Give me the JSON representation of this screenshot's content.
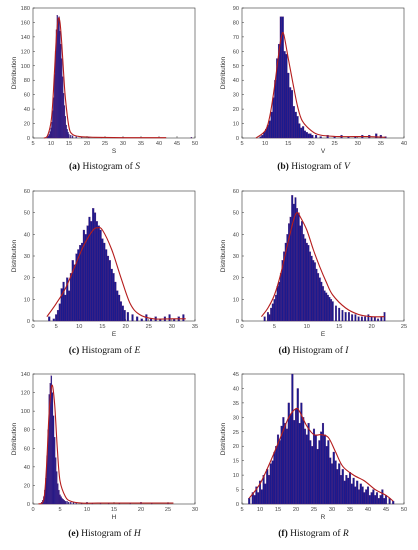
{
  "colors": {
    "bar": "#1b1a8e",
    "bar_edge": "#5a1b6a",
    "curve": "#b51d1d",
    "axis": "#333333"
  },
  "chart_data": [
    {
      "id": "a",
      "type": "bar",
      "caption": {
        "letter": "(a)",
        "text": "Histogram of",
        "variable": "S"
      },
      "xlabel": "S",
      "ylabel": "Distribution",
      "xlim": [
        5,
        50
      ],
      "ylim": [
        0,
        180
      ],
      "xticks": [
        5,
        10,
        15,
        20,
        25,
        30,
        35,
        40,
        45,
        50
      ],
      "yticks": [
        0,
        20,
        40,
        60,
        80,
        100,
        120,
        140,
        160,
        180
      ],
      "bar_width": 0.25,
      "x": [
        9.0,
        9.25,
        9.5,
        9.75,
        10.0,
        10.25,
        10.5,
        10.75,
        11.0,
        11.25,
        11.5,
        11.75,
        12.0,
        12.25,
        12.5,
        12.75,
        13.0,
        13.25,
        13.5,
        13.75,
        14.0,
        14.25,
        14.5,
        14.75,
        15.0,
        15.5,
        16.0,
        17.0,
        18.5,
        20.5,
        24.0,
        30.0,
        49.0
      ],
      "values": [
        2,
        3,
        5,
        9,
        14,
        22,
        38,
        56,
        88,
        120,
        150,
        170,
        165,
        168,
        148,
        130,
        110,
        85,
        62,
        45,
        30,
        18,
        12,
        8,
        5,
        4,
        3,
        2,
        1,
        1,
        1,
        1,
        1
      ],
      "curve": {
        "x": [
          8,
          9,
          10,
          10.5,
          11,
          11.5,
          12,
          12.5,
          13,
          13.5,
          14,
          15,
          16,
          18,
          22,
          30,
          42
        ],
        "y": [
          0,
          3,
          22,
          50,
          95,
          140,
          165,
          160,
          130,
          90,
          55,
          15,
          5,
          2,
          1,
          0.5,
          0.5
        ]
      }
    },
    {
      "id": "b",
      "type": "bar",
      "caption": {
        "letter": "(b)",
        "text": "Histogram of",
        "variable": "V"
      },
      "xlabel": "V",
      "ylabel": "Distribution",
      "xlim": [
        5,
        40
      ],
      "ylim": [
        0,
        90
      ],
      "xticks": [
        5,
        10,
        15,
        20,
        25,
        30,
        35,
        40
      ],
      "yticks": [
        0,
        10,
        20,
        30,
        40,
        50,
        60,
        70,
        80,
        90
      ],
      "bar_width": 0.4,
      "x": [
        9.0,
        9.4,
        9.8,
        10.2,
        10.6,
        11.0,
        11.4,
        11.8,
        12.2,
        12.6,
        13.0,
        13.4,
        13.8,
        14.2,
        14.6,
        15.0,
        15.4,
        15.8,
        16.2,
        16.6,
        17.0,
        17.4,
        17.8,
        18.2,
        18.6,
        19.0,
        19.4,
        19.8,
        20.2,
        21.0,
        22.0,
        23.5,
        25.0,
        26.5,
        28.0,
        29.5,
        31.0,
        32.5,
        34.0,
        35.0,
        36.0
      ],
      "values": [
        1,
        2,
        4,
        6,
        9,
        12,
        18,
        28,
        40,
        55,
        65,
        84,
        84,
        60,
        58,
        45,
        35,
        33,
        22,
        18,
        15,
        10,
        7,
        8,
        5,
        4,
        3,
        3,
        2,
        2,
        1,
        2,
        1,
        2,
        1,
        1,
        2,
        2,
        3,
        2,
        1
      ],
      "curve": {
        "x": [
          8,
          10,
          11,
          12,
          13,
          13.5,
          14,
          15,
          16,
          17,
          18,
          20,
          22,
          26,
          32,
          36
        ],
        "y": [
          0,
          5,
          15,
          35,
          60,
          70,
          72,
          55,
          38,
          22,
          12,
          5,
          2,
          1,
          1,
          0.5
        ]
      }
    },
    {
      "id": "c",
      "type": "bar",
      "caption": {
        "letter": "(c)",
        "text": "Histogram of",
        "variable": "E"
      },
      "xlabel": "E",
      "ylabel": "Distribution",
      "xlim": [
        0,
        35
      ],
      "ylim": [
        0,
        60
      ],
      "xticks": [
        0,
        5,
        10,
        15,
        20,
        25,
        30,
        35
      ],
      "yticks": [
        0,
        10,
        20,
        30,
        40,
        50,
        60
      ],
      "bar_width": 0.4,
      "x": [
        3.5,
        4.5,
        5.0,
        5.4,
        5.8,
        6.2,
        6.6,
        7.0,
        7.4,
        7.8,
        8.2,
        8.6,
        9.0,
        9.4,
        9.8,
        10.2,
        10.6,
        11.0,
        11.4,
        11.8,
        12.2,
        12.6,
        13.0,
        13.4,
        13.8,
        14.2,
        14.6,
        15.0,
        15.4,
        15.8,
        16.2,
        16.6,
        17.0,
        17.4,
        17.8,
        18.2,
        18.6,
        19.0,
        19.4,
        19.8,
        20.5,
        21.5,
        22.5,
        23.5,
        24.5,
        25.5,
        26.5,
        27.5,
        28.5,
        29.5,
        30.5,
        31.5,
        32.5
      ],
      "values": [
        2,
        1,
        3,
        5,
        8,
        15,
        18,
        12,
        20,
        14,
        22,
        28,
        26,
        31,
        33,
        35,
        36,
        42,
        40,
        44,
        48,
        46,
        52,
        50,
        46,
        44,
        42,
        38,
        36,
        33,
        30,
        28,
        24,
        22,
        18,
        14,
        12,
        9,
        7,
        5,
        4,
        3,
        2,
        1,
        3,
        1,
        2,
        1,
        2,
        3,
        1,
        2,
        3
      ],
      "curve": {
        "x": [
          3,
          5,
          7,
          9,
          11,
          13,
          14,
          15,
          17,
          19,
          21,
          23,
          26,
          30,
          33
        ],
        "y": [
          2,
          8,
          15,
          25,
          35,
          42,
          43,
          42,
          33,
          20,
          8,
          3,
          1,
          1,
          1
        ]
      }
    },
    {
      "id": "d",
      "type": "bar",
      "caption": {
        "letter": "(d)",
        "text": "Histogram of",
        "variable": "I"
      },
      "xlabel": "E",
      "ylabel": "Distribution",
      "xlim": [
        0,
        25
      ],
      "ylim": [
        0,
        60
      ],
      "xticks": [
        0,
        5,
        10,
        15,
        20,
        25
      ],
      "yticks": [
        0,
        10,
        20,
        30,
        40,
        50,
        60
      ],
      "bar_width": 0.25,
      "x": [
        3.5,
        4.0,
        4.25,
        4.5,
        4.75,
        5.0,
        5.25,
        5.5,
        5.75,
        6.0,
        6.25,
        6.5,
        6.75,
        7.0,
        7.25,
        7.5,
        7.75,
        8.0,
        8.25,
        8.5,
        8.75,
        9.0,
        9.25,
        9.5,
        9.75,
        10.0,
        10.25,
        10.5,
        10.75,
        11.0,
        11.25,
        11.5,
        11.75,
        12.0,
        12.25,
        12.5,
        12.75,
        13.0,
        13.25,
        13.5,
        13.75,
        14.0,
        14.5,
        15.0,
        15.5,
        16.0,
        16.5,
        17.0,
        17.5,
        18.0,
        18.5,
        19.0,
        19.5,
        20.0,
        20.5,
        21.0,
        21.5,
        22.0
      ],
      "values": [
        2,
        4,
        3,
        6,
        8,
        10,
        12,
        16,
        18,
        22,
        28,
        32,
        36,
        40,
        45,
        48,
        58,
        54,
        57,
        52,
        50,
        44,
        46,
        40,
        38,
        36,
        35,
        32,
        30,
        28,
        27,
        24,
        22,
        20,
        18,
        16,
        14,
        13,
        12,
        11,
        10,
        9,
        7,
        6,
        5,
        4,
        4,
        3,
        3,
        2,
        2,
        2,
        3,
        2,
        2,
        1,
        2,
        4
      ],
      "curve": {
        "x": [
          3,
          4,
          5,
          6,
          7,
          8,
          8.5,
          9,
          10,
          11,
          12,
          13,
          14,
          16,
          18,
          20,
          22
        ],
        "y": [
          2,
          6,
          12,
          22,
          35,
          47,
          50,
          48,
          42,
          33,
          25,
          18,
          12,
          6,
          3,
          2,
          2
        ]
      }
    },
    {
      "id": "e",
      "type": "bar",
      "caption": {
        "letter": "(e)",
        "text": "Histogram of",
        "variable": "H"
      },
      "xlabel": "H",
      "ylabel": "Distribution",
      "xlim": [
        0,
        30
      ],
      "ylim": [
        0,
        140
      ],
      "xticks": [
        0,
        5,
        10,
        15,
        20,
        25,
        30
      ],
      "yticks": [
        0,
        20,
        40,
        60,
        80,
        100,
        120,
        140
      ],
      "bar_width": 0.2,
      "x": [
        1.6,
        1.8,
        2.0,
        2.2,
        2.4,
        2.6,
        2.8,
        3.0,
        3.2,
        3.4,
        3.6,
        3.8,
        4.0,
        4.2,
        4.4,
        4.6,
        4.8,
        5.0,
        5.2,
        5.4,
        5.6,
        5.8,
        6.0,
        6.3,
        6.6,
        7.0,
        7.5,
        8.0,
        9.0,
        10.0,
        11.0,
        12.5,
        14.0,
        16.0,
        18.0,
        20.0,
        22.0,
        25.0
      ],
      "values": [
        2,
        4,
        8,
        15,
        28,
        52,
        80,
        118,
        130,
        138,
        120,
        95,
        72,
        50,
        35,
        22,
        15,
        10,
        8,
        6,
        5,
        4,
        3,
        3,
        2,
        2,
        2,
        1,
        1,
        2,
        1,
        1,
        1,
        1,
        1,
        2,
        1,
        1
      ],
      "curve": {
        "x": [
          1,
          2,
          2.5,
          3,
          3.5,
          4,
          4.5,
          5,
          6,
          7,
          9,
          12,
          16,
          22,
          26
        ],
        "y": [
          0,
          5,
          40,
          100,
          128,
          108,
          60,
          25,
          8,
          3,
          1,
          1,
          1,
          1,
          1
        ]
      }
    },
    {
      "id": "f",
      "type": "bar",
      "caption": {
        "letter": "(f)",
        "text": "Histogram of",
        "variable": "R"
      },
      "xlabel": "R",
      "ylabel": "Distribution",
      "xlim": [
        5,
        50
      ],
      "ylim": [
        0,
        45
      ],
      "xticks": [
        5,
        10,
        15,
        20,
        25,
        30,
        35,
        40,
        45,
        50
      ],
      "yticks": [
        0,
        5,
        10,
        15,
        20,
        25,
        30,
        35,
        40,
        45
      ],
      "bar_width": 0.5,
      "x": [
        7.0,
        8.0,
        8.5,
        9.0,
        9.5,
        10.0,
        10.5,
        11.0,
        11.5,
        12.0,
        12.5,
        13.0,
        13.5,
        14.0,
        14.5,
        15.0,
        15.5,
        16.0,
        16.5,
        17.0,
        17.5,
        18.0,
        18.5,
        19.0,
        19.5,
        20.0,
        20.5,
        21.0,
        21.5,
        22.0,
        22.5,
        23.0,
        23.5,
        24.0,
        24.5,
        25.0,
        25.5,
        26.0,
        26.5,
        27.0,
        27.5,
        28.0,
        28.5,
        29.0,
        29.5,
        30.0,
        30.5,
        31.0,
        31.5,
        32.0,
        32.5,
        33.0,
        33.5,
        34.0,
        34.5,
        35.0,
        35.5,
        36.0,
        36.5,
        37.0,
        37.5,
        38.0,
        38.5,
        39.0,
        39.5,
        40.0,
        40.5,
        41.0,
        41.5,
        42.0,
        42.5,
        43.0,
        43.5,
        44.0,
        44.5,
        45.0,
        46.0,
        47.0
      ],
      "values": [
        2,
        4,
        3,
        6,
        4,
        8,
        5,
        10,
        7,
        12,
        10,
        14,
        15,
        18,
        20,
        24,
        22,
        27,
        30,
        28,
        26,
        35,
        31,
        45,
        29,
        33,
        40,
        28,
        35,
        30,
        26,
        24,
        28,
        22,
        20,
        26,
        24,
        19,
        22,
        25,
        28,
        24,
        20,
        22,
        16,
        14,
        18,
        15,
        12,
        14,
        10,
        12,
        8,
        10,
        9,
        11,
        7,
        9,
        6,
        8,
        5,
        7,
        6,
        4,
        5,
        6,
        3,
        4,
        5,
        3,
        4,
        2,
        3,
        5,
        2,
        3,
        2,
        1
      ],
      "curve": {
        "x": [
          7,
          10,
          13,
          16,
          18,
          20,
          21,
          23,
          25,
          27,
          29,
          31,
          33,
          36,
          39,
          42,
          45,
          47
        ],
        "y": [
          2,
          7,
          15,
          24,
          30,
          33,
          32,
          27,
          24,
          24,
          23,
          18,
          13,
          10,
          8,
          5,
          3,
          1
        ]
      }
    }
  ]
}
